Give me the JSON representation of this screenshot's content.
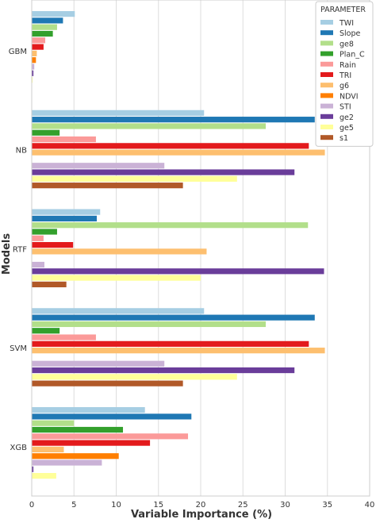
{
  "chart_data": {
    "type": "bar",
    "orientation": "horizontal",
    "xlabel": "Variable Importance (%)",
    "ylabel": "Models",
    "xlim": [
      0,
      40
    ],
    "xticks": [
      0,
      5,
      10,
      15,
      20,
      25,
      30,
      35,
      40
    ],
    "grid": true,
    "legend_position": "top-right",
    "legend_title": "PARAMETER",
    "categories": [
      "GBM",
      "NB",
      "RTF",
      "SVM",
      "XGB"
    ],
    "series": [
      {
        "name": "TWI",
        "color": "#a6cee3",
        "values": [
          5.1,
          20.4,
          8.1,
          20.4,
          13.4
        ]
      },
      {
        "name": "Slope",
        "color": "#1f78b4",
        "values": [
          3.7,
          33.5,
          7.7,
          33.5,
          18.9
        ]
      },
      {
        "name": "ge8",
        "color": "#b2df8a",
        "values": [
          3.0,
          27.7,
          32.7,
          27.7,
          5.0
        ]
      },
      {
        "name": "Plan_C",
        "color": "#33a02c",
        "values": [
          2.5,
          3.3,
          3.0,
          3.3,
          10.8
        ]
      },
      {
        "name": "Rain",
        "color": "#fb9a99",
        "values": [
          1.6,
          7.6,
          1.4,
          7.6,
          18.5
        ]
      },
      {
        "name": "TRI",
        "color": "#e31a1c",
        "values": [
          1.4,
          32.8,
          4.9,
          32.8,
          14.0
        ]
      },
      {
        "name": "g6",
        "color": "#fdbf6f",
        "values": [
          0.6,
          34.7,
          20.7,
          34.7,
          3.8
        ]
      },
      {
        "name": "NDVI",
        "color": "#ff7f00",
        "values": [
          0.5,
          0,
          0,
          0,
          10.3
        ]
      },
      {
        "name": "STI",
        "color": "#cab2d6",
        "values": [
          0.3,
          15.7,
          1.5,
          15.7,
          8.3
        ]
      },
      {
        "name": "ge2",
        "color": "#6a3d9a",
        "values": [
          0.2,
          31.1,
          34.6,
          31.1,
          0.2
        ]
      },
      {
        "name": "ge5",
        "color": "#ffff99",
        "values": [
          0.1,
          24.3,
          20.0,
          24.3,
          2.9
        ]
      },
      {
        "name": "s1",
        "color": "#b15928",
        "values": [
          0,
          17.9,
          4.1,
          17.9,
          0
        ]
      }
    ]
  }
}
